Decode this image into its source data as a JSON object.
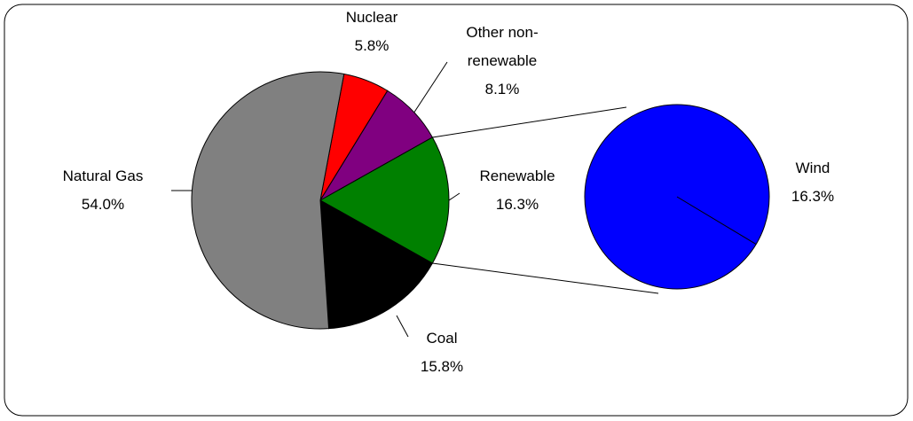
{
  "chart_data": {
    "type": "pie",
    "categories": [
      "Nuclear",
      "Other non-renewable",
      "Renewable",
      "Coal",
      "Natural Gas"
    ],
    "values": [
      5.8,
      8.1,
      16.3,
      15.8,
      54.0
    ],
    "value_labels": [
      "5.8%",
      "8.1%",
      "16.3%",
      "15.8%",
      "54.0%"
    ],
    "colors": [
      "#ff0000",
      "#800080",
      "#008000",
      "#000000",
      "#808080"
    ],
    "secondary": {
      "categories": [
        "Wind"
      ],
      "values": [
        16.3
      ],
      "value_labels": [
        "16.3%"
      ],
      "colors": [
        "#0000ff"
      ]
    }
  }
}
